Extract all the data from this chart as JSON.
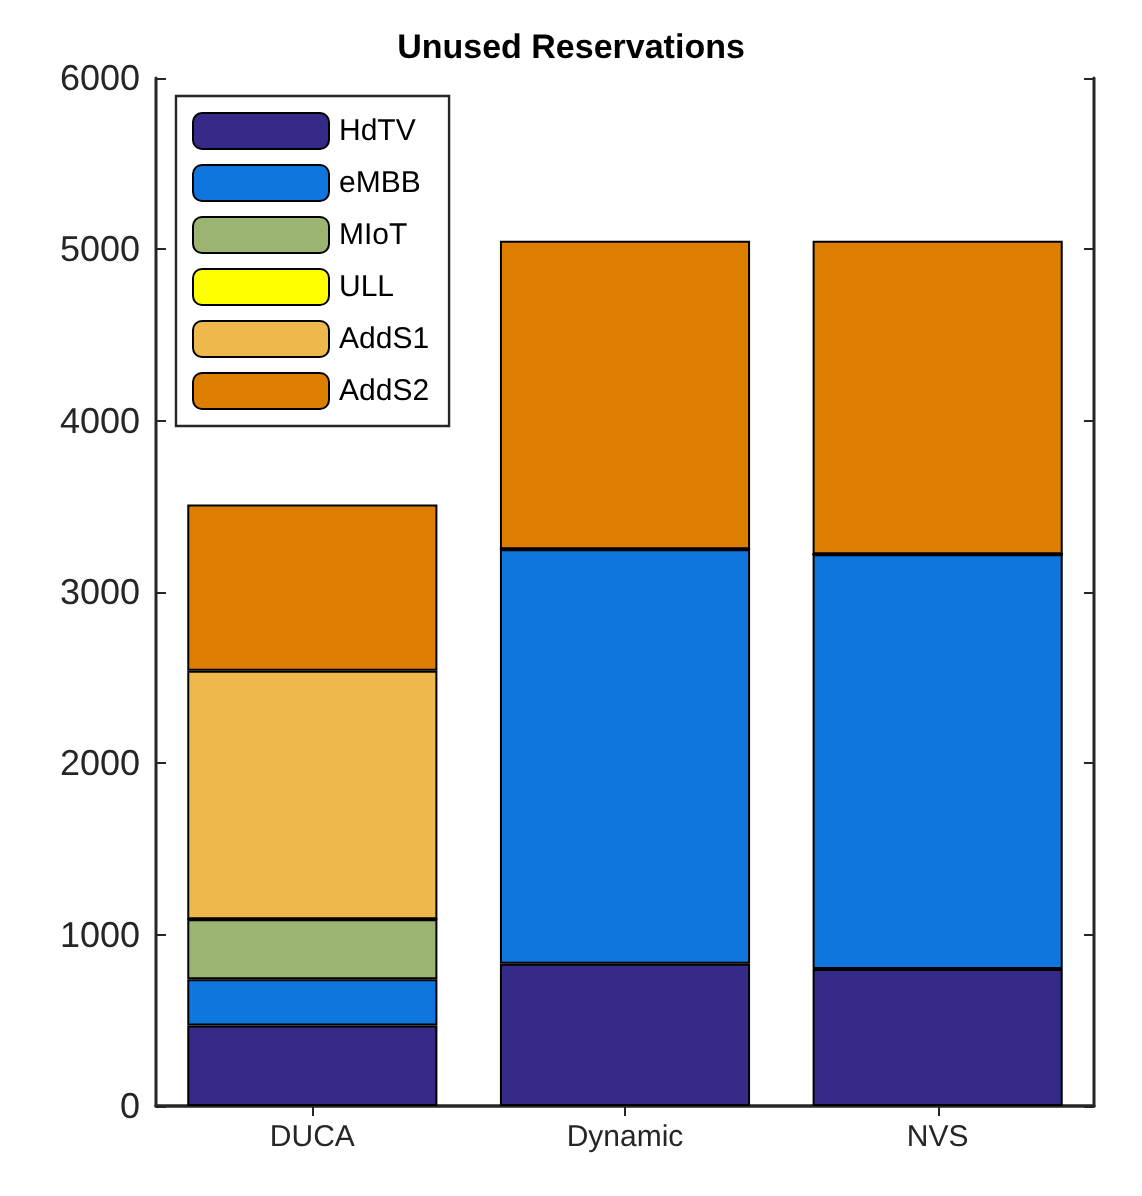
{
  "chart_data": {
    "type": "bar",
    "title": "Unused Reservations",
    "categories": [
      "DUCA",
      "Dynamic",
      "NVS"
    ],
    "stacked": true,
    "series": [
      {
        "name": "HdTV",
        "color": "#352a87",
        "values": [
          470,
          830,
          800
        ]
      },
      {
        "name": "eMBB",
        "color": "#0f76dd",
        "values": [
          270,
          2420,
          2420
        ]
      },
      {
        "name": "MIoT",
        "color": "#9bb472",
        "values": [
          350,
          0,
          0
        ]
      },
      {
        "name": "ULL",
        "color": "#ffff00",
        "values": [
          0,
          0,
          0
        ]
      },
      {
        "name": "AddS1",
        "color": "#eeb84c",
        "values": [
          1450,
          0,
          0
        ]
      },
      {
        "name": "AddS2",
        "color": "#de7e00",
        "values": [
          970,
          1800,
          1830
        ]
      }
    ],
    "ylim": [
      0,
      6000
    ],
    "yticks": [
      0,
      1000,
      2000,
      3000,
      4000,
      5000,
      6000
    ],
    "grid": false,
    "legend": "top left"
  }
}
